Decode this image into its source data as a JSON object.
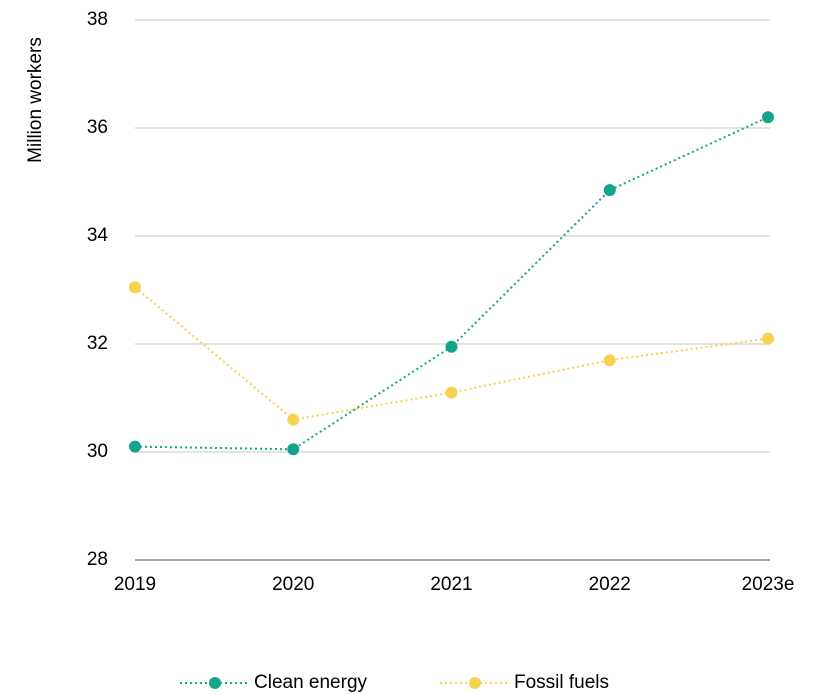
{
  "chart_data": {
    "type": "line",
    "y_label": "Million workers",
    "categories": [
      "2019",
      "2020",
      "2021",
      "2022",
      "2023e"
    ],
    "series": [
      {
        "name": "Clean energy",
        "color": "#13a58c",
        "values": [
          30.1,
          30.05,
          31.95,
          34.85,
          36.2
        ]
      },
      {
        "name": "Fossil fuels",
        "color": "#f7d24e",
        "values": [
          33.05,
          30.6,
          31.1,
          31.7,
          32.1
        ]
      }
    ],
    "ylim": [
      28,
      38
    ],
    "yticks": [
      28,
      30,
      32,
      34,
      36,
      38
    ],
    "grid": true,
    "legend": "bottom"
  }
}
